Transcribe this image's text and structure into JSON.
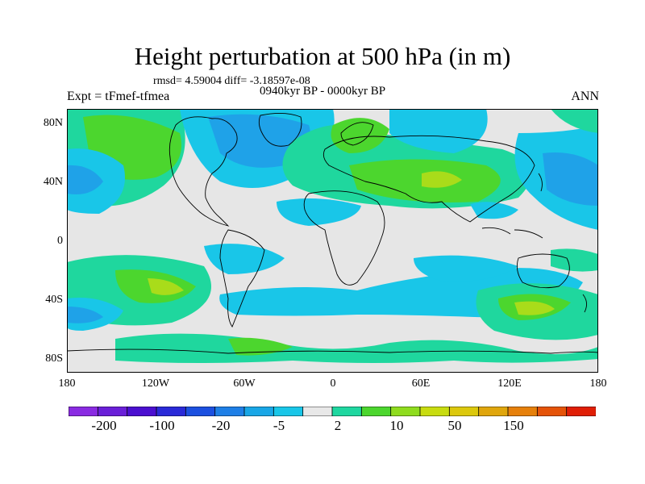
{
  "title": "Height perturbation at 500 hPa (in m)",
  "stats": "rmsd= 4.59004 diff= -3.18597e-08",
  "period": "0940kyr BP - 0000kyr BP",
  "experiment": "Expt = tFmef-tfmea",
  "season": "ANN",
  "lat_ticks": [
    "80N",
    "40N",
    "0",
    "40S",
    "80S"
  ],
  "lon_ticks": [
    "180",
    "120W",
    "60W",
    "0",
    "60E",
    "120E",
    "180"
  ],
  "colorbar": {
    "colors": [
      "#8a2be2",
      "#6a1fd8",
      "#4b0fd0",
      "#2a2ad8",
      "#1c50e0",
      "#1e7fe6",
      "#19a6e6",
      "#19c6e8",
      "#e8e8e8",
      "#1fd7a0",
      "#4cd62e",
      "#8fdc1e",
      "#c8dc10",
      "#dcc80c",
      "#e0a60c",
      "#e6800a",
      "#e55308",
      "#e01e06"
    ],
    "labels": [
      "-200",
      "-100",
      "-20",
      "-5",
      "2",
      "10",
      "50",
      "150"
    ]
  },
  "field_colors": {
    "neutral": "#e6e6e6",
    "pos1": "#1fd79e",
    "pos2": "#4cd62e",
    "pos3": "#a9dc1a",
    "neg1": "#19c6e8",
    "neg2": "#1fa2e8",
    "neg3": "#2a7ae2"
  }
}
